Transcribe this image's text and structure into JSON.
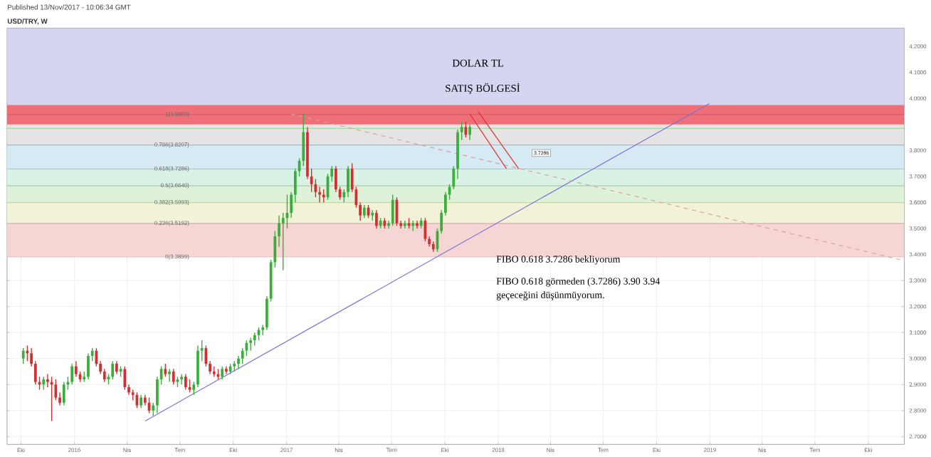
{
  "chart_data": {
    "type": "candlestick",
    "title": "USD/TRY, W",
    "subtitle": "Published 13/Nov/2017 - 10:06:34 GMT",
    "annotations": [
      "DOLAR TL",
      "SATIŞ BÖLGESİ",
      "FIBO 0.618  3.7286 bekliyorum",
      "FIBO 0.618 görmeden (3.7286) 3.90 3.94",
      "geçeceğini düşünmüyorum.",
      "3.7286"
    ],
    "x": [
      "2015-10-05",
      "2015-10-12",
      "2015-10-19",
      "2015-10-26",
      "2015-11-02",
      "2015-11-09",
      "2015-11-16",
      "2015-11-23",
      "2015-11-30",
      "2015-12-07",
      "2015-12-14",
      "2015-12-21",
      "2015-12-28",
      "2016-01-04",
      "2016-01-11",
      "2016-01-18",
      "2016-01-25",
      "2016-02-01",
      "2016-02-08",
      "2016-02-15",
      "2016-02-22",
      "2016-02-29",
      "2016-03-07",
      "2016-03-14",
      "2016-03-21",
      "2016-03-28",
      "2016-04-04",
      "2016-04-11",
      "2016-04-18",
      "2016-04-25",
      "2016-05-02",
      "2016-05-09",
      "2016-05-16",
      "2016-05-23",
      "2016-05-30",
      "2016-06-06",
      "2016-06-13",
      "2016-06-20",
      "2016-06-27",
      "2016-07-04",
      "2016-07-11",
      "2016-07-18",
      "2016-07-25",
      "2016-08-01",
      "2016-08-08",
      "2016-08-15",
      "2016-08-22",
      "2016-08-29",
      "2016-09-05",
      "2016-09-12",
      "2016-09-19",
      "2016-09-26",
      "2016-10-03",
      "2016-10-10",
      "2016-10-17",
      "2016-10-24",
      "2016-10-31",
      "2016-11-07",
      "2016-11-14",
      "2016-11-21",
      "2016-11-28",
      "2016-12-05",
      "2016-12-12",
      "2016-12-19",
      "2016-12-26",
      "2017-01-02",
      "2017-01-09",
      "2017-01-16",
      "2017-01-23",
      "2017-01-30",
      "2017-02-06",
      "2017-02-13",
      "2017-02-20",
      "2017-02-27",
      "2017-03-06",
      "2017-03-13",
      "2017-03-20",
      "2017-03-27",
      "2017-04-03",
      "2017-04-10",
      "2017-04-17",
      "2017-04-24",
      "2017-05-01",
      "2017-05-08",
      "2017-05-15",
      "2017-05-22",
      "2017-05-29",
      "2017-06-05",
      "2017-06-12",
      "2017-06-19",
      "2017-06-26",
      "2017-07-03",
      "2017-07-10",
      "2017-07-17",
      "2017-07-24",
      "2017-07-31",
      "2017-08-07",
      "2017-08-14",
      "2017-08-21",
      "2017-08-28",
      "2017-09-04",
      "2017-09-11",
      "2017-09-18",
      "2017-09-25",
      "2017-10-02",
      "2017-10-09",
      "2017-10-16",
      "2017-10-23",
      "2017-10-30",
      "2017-11-06",
      "2017-11-13"
    ],
    "ohlc": [
      [
        3.0,
        3.04,
        2.98,
        3.03
      ],
      [
        3.03,
        3.05,
        2.99,
        3.02
      ],
      [
        3.02,
        3.04,
        2.97,
        2.98
      ],
      [
        2.98,
        2.99,
        2.9,
        2.91
      ],
      [
        2.91,
        2.93,
        2.88,
        2.9
      ],
      [
        2.9,
        2.93,
        2.88,
        2.92
      ],
      [
        2.92,
        2.94,
        2.89,
        2.91
      ],
      [
        2.91,
        2.93,
        2.76,
        2.9
      ],
      [
        2.9,
        2.92,
        2.84,
        2.85
      ],
      [
        2.85,
        2.87,
        2.82,
        2.83
      ],
      [
        2.83,
        2.91,
        2.82,
        2.9
      ],
      [
        2.9,
        2.93,
        2.88,
        2.91
      ],
      [
        2.91,
        2.98,
        2.9,
        2.97
      ],
      [
        2.97,
        2.99,
        2.93,
        2.94
      ],
      [
        2.94,
        2.95,
        2.91,
        2.92
      ],
      [
        2.92,
        2.95,
        2.91,
        2.93
      ],
      [
        2.93,
        3.02,
        2.92,
        3.01
      ],
      [
        3.01,
        3.04,
        2.99,
        3.03
      ],
      [
        3.03,
        3.04,
        2.97,
        2.98
      ],
      [
        2.98,
        2.99,
        2.94,
        2.95
      ],
      [
        2.95,
        2.96,
        2.91,
        2.92
      ],
      [
        2.92,
        2.94,
        2.9,
        2.93
      ],
      [
        2.93,
        2.99,
        2.92,
        2.98
      ],
      [
        2.98,
        2.99,
        2.94,
        2.95
      ],
      [
        2.95,
        2.97,
        2.93,
        2.96
      ],
      [
        2.96,
        2.97,
        2.88,
        2.89
      ],
      [
        2.89,
        2.9,
        2.86,
        2.87
      ],
      [
        2.87,
        2.88,
        2.84,
        2.86
      ],
      [
        2.86,
        2.87,
        2.81,
        2.82
      ],
      [
        2.82,
        2.86,
        2.81,
        2.85
      ],
      [
        2.85,
        2.86,
        2.82,
        2.83
      ],
      [
        2.83,
        2.85,
        2.79,
        2.8
      ],
      [
        2.8,
        2.83,
        2.78,
        2.82
      ],
      [
        2.82,
        2.93,
        2.79,
        2.92
      ],
      [
        2.92,
        2.97,
        2.9,
        2.96
      ],
      [
        2.96,
        2.98,
        2.93,
        2.94
      ],
      [
        2.94,
        2.96,
        2.91,
        2.95
      ],
      [
        2.95,
        2.96,
        2.9,
        2.91
      ],
      [
        2.91,
        2.93,
        2.89,
        2.92
      ],
      [
        2.92,
        2.94,
        2.9,
        2.93
      ],
      [
        2.93,
        2.94,
        2.88,
        2.89
      ],
      [
        2.89,
        2.92,
        2.87,
        2.88
      ],
      [
        2.88,
        2.91,
        2.86,
        2.9
      ],
      [
        2.9,
        3.05,
        2.89,
        3.03
      ],
      [
        3.03,
        3.07,
        2.99,
        3.04
      ],
      [
        3.04,
        3.05,
        2.97,
        2.98
      ],
      [
        2.98,
        2.99,
        2.94,
        2.95
      ],
      [
        2.95,
        2.97,
        2.93,
        2.94
      ],
      [
        2.94,
        2.96,
        2.92,
        2.93
      ],
      [
        2.93,
        2.97,
        2.92,
        2.96
      ],
      [
        2.96,
        2.97,
        2.94,
        2.95
      ],
      [
        2.95,
        2.98,
        2.94,
        2.97
      ],
      [
        2.97,
        2.99,
        2.95,
        2.98
      ],
      [
        2.98,
        3.01,
        2.96,
        3.0
      ],
      [
        3.0,
        3.04,
        2.98,
        3.03
      ],
      [
        3.03,
        3.07,
        3.01,
        3.06
      ],
      [
        3.06,
        3.08,
        3.03,
        3.07
      ],
      [
        3.07,
        3.1,
        3.05,
        3.09
      ],
      [
        3.09,
        3.12,
        3.07,
        3.11
      ],
      [
        3.11,
        3.13,
        3.09,
        3.12
      ],
      [
        3.12,
        3.24,
        3.11,
        3.23
      ],
      [
        3.23,
        3.38,
        3.22,
        3.37
      ],
      [
        3.37,
        3.49,
        3.35,
        3.47
      ],
      [
        3.47,
        3.55,
        3.43,
        3.52
      ],
      [
        3.52,
        3.56,
        3.34,
        3.54
      ],
      [
        3.54,
        3.63,
        3.5,
        3.56
      ],
      [
        3.56,
        3.64,
        3.54,
        3.63
      ],
      [
        3.63,
        3.73,
        3.6,
        3.72
      ],
      [
        3.72,
        3.77,
        3.7,
        3.76
      ],
      [
        3.76,
        3.94,
        3.74,
        3.87
      ],
      [
        3.87,
        3.89,
        3.69,
        3.7
      ],
      [
        3.7,
        3.73,
        3.64,
        3.67
      ],
      [
        3.67,
        3.69,
        3.62,
        3.64
      ],
      [
        3.64,
        3.66,
        3.6,
        3.63
      ],
      [
        3.63,
        3.65,
        3.6,
        3.62
      ],
      [
        3.62,
        3.71,
        3.61,
        3.7
      ],
      [
        3.7,
        3.74,
        3.68,
        3.73
      ],
      [
        3.73,
        3.74,
        3.64,
        3.65
      ],
      [
        3.65,
        3.66,
        3.61,
        3.62
      ],
      [
        3.62,
        3.65,
        3.6,
        3.64
      ],
      [
        3.64,
        3.74,
        3.62,
        3.73
      ],
      [
        3.73,
        3.75,
        3.64,
        3.65
      ],
      [
        3.65,
        3.66,
        3.58,
        3.59
      ],
      [
        3.59,
        3.6,
        3.53,
        3.55
      ],
      [
        3.55,
        3.59,
        3.54,
        3.58
      ],
      [
        3.58,
        3.59,
        3.54,
        3.55
      ],
      [
        3.55,
        3.57,
        3.53,
        3.56
      ],
      [
        3.56,
        3.57,
        3.5,
        3.51
      ],
      [
        3.51,
        3.54,
        3.5,
        3.53
      ],
      [
        3.53,
        3.54,
        3.5,
        3.51
      ],
      [
        3.51,
        3.53,
        3.5,
        3.52
      ],
      [
        3.52,
        3.63,
        3.51,
        3.61
      ],
      [
        3.61,
        3.62,
        3.51,
        3.52
      ],
      [
        3.52,
        3.53,
        3.5,
        3.51
      ],
      [
        3.51,
        3.53,
        3.5,
        3.52
      ],
      [
        3.52,
        3.54,
        3.5,
        3.51
      ],
      [
        3.51,
        3.53,
        3.49,
        3.52
      ],
      [
        3.52,
        3.53,
        3.5,
        3.51
      ],
      [
        3.51,
        3.54,
        3.5,
        3.53
      ],
      [
        3.53,
        3.54,
        3.45,
        3.46
      ],
      [
        3.46,
        3.47,
        3.43,
        3.44
      ],
      [
        3.44,
        3.45,
        3.41,
        3.42
      ],
      [
        3.42,
        3.5,
        3.41,
        3.49
      ],
      [
        3.49,
        3.57,
        3.48,
        3.56
      ],
      [
        3.56,
        3.64,
        3.55,
        3.63
      ],
      [
        3.63,
        3.67,
        3.61,
        3.66
      ],
      [
        3.66,
        3.74,
        3.65,
        3.73
      ],
      [
        3.73,
        3.88,
        3.69,
        3.87
      ],
      [
        3.87,
        3.91,
        3.84,
        3.89
      ],
      [
        3.89,
        3.91,
        3.85,
        3.86
      ],
      [
        3.86,
        3.9,
        3.84,
        3.89
      ]
    ],
    "series": [
      {
        "type": "line",
        "x": [
          "2016-05-02",
          "2018-12-31"
        ],
        "values": [
          2.76,
          3.98
        ],
        "color": "#7b6fd6"
      },
      {
        "type": "line",
        "x": [
          "2017-01-09",
          "2019-11-25"
        ],
        "values": [
          3.94,
          3.38
        ],
        "color": "#d9a0a0",
        "line_style": "dashed"
      },
      {
        "type": "line",
        "x": [
          "2017-11-13",
          "2018-01-15"
        ],
        "values": [
          3.94,
          3.73
        ],
        "color": "#e03030"
      },
      {
        "type": "line",
        "x": [
          "2017-11-27",
          "2018-02-05"
        ],
        "values": [
          3.95,
          3.73
        ],
        "color": "#e03030"
      }
    ],
    "bands": [
      {
        "axis": "y",
        "from": 3.3899,
        "to": 3.5192,
        "color": "#f6d5d5"
      },
      {
        "axis": "y",
        "from": 3.5192,
        "to": 3.5993,
        "color": "#f1f2d8"
      },
      {
        "axis": "y",
        "from": 3.5993,
        "to": 3.664,
        "color": "#ddf2d8"
      },
      {
        "axis": "y",
        "from": 3.664,
        "to": 3.7286,
        "color": "#d8f2e6"
      },
      {
        "axis": "y",
        "from": 3.7286,
        "to": 3.8207,
        "color": "#d6eaf4"
      },
      {
        "axis": "y",
        "from": 3.8207,
        "to": 3.938,
        "color": "#e4e4e4"
      },
      {
        "axis": "y",
        "from": 3.9,
        "to": 3.975,
        "color": "#ef6f78"
      },
      {
        "axis": "y",
        "from": 3.975,
        "to": 4.27,
        "color": "#d5d5f2"
      }
    ],
    "ref_lines": [
      {
        "axis": "y",
        "value": 3.3899,
        "label": "0(3.3899)",
        "color": "#c9a0a0"
      },
      {
        "axis": "y",
        "value": 3.5192,
        "label": "0.236(3.5192)",
        "color": "#c08080"
      },
      {
        "axis": "y",
        "value": 3.5993,
        "label": "0.382(3.5993)",
        "color": "#b0c080"
      },
      {
        "axis": "y",
        "value": 3.664,
        "label": "0.5(3.6640)",
        "color": "#80b080"
      },
      {
        "axis": "y",
        "value": 3.7286,
        "label": "0.618(3.7286)",
        "color": "#80b0b0"
      },
      {
        "axis": "y",
        "value": 3.8207,
        "label": "0.786(3.8207)",
        "color": "#8090a8"
      },
      {
        "axis": "y",
        "value": 3.938,
        "label": "1(3.9380)",
        "color": "#c05060"
      },
      {
        "axis": "y",
        "value": 3.885,
        "color": "#5cc65c"
      }
    ],
    "xlim": [
      "2015-09-07",
      "2019-12-02"
    ],
    "ylim": [
      2.67,
      4.27
    ],
    "xticks": [
      {
        "value": "2015-10-01",
        "label": "Eki"
      },
      {
        "value": "2016-01-01",
        "label": "2016"
      },
      {
        "value": "2016-04-01",
        "label": "Nis"
      },
      {
        "value": "2016-07-01",
        "label": "Tem"
      },
      {
        "value": "2016-10-01",
        "label": "Eki"
      },
      {
        "value": "2017-01-01",
        "label": "2017"
      },
      {
        "value": "2017-04-01",
        "label": "Nis"
      },
      {
        "value": "2017-07-01",
        "label": "Tem"
      },
      {
        "value": "2017-10-01",
        "label": "Eki"
      },
      {
        "value": "2018-01-01",
        "label": "2018"
      },
      {
        "value": "2018-04-01",
        "label": "Nis"
      },
      {
        "value": "2018-07-01",
        "label": "Tem"
      },
      {
        "value": "2018-10-01",
        "label": "Eki"
      },
      {
        "value": "2019-01-01",
        "label": "2019"
      },
      {
        "value": "2019-04-01",
        "label": "Nis"
      },
      {
        "value": "2019-07-01",
        "label": "Tem"
      },
      {
        "value": "2019-10-01",
        "label": "Eki"
      }
    ],
    "yticks": [
      {
        "value": 2.7,
        "label": "2.7000"
      },
      {
        "value": 2.8,
        "label": "2.8000"
      },
      {
        "value": 2.9,
        "label": "2.9000"
      },
      {
        "value": 3.0,
        "label": "3.0000"
      },
      {
        "value": 3.1,
        "label": "3.1000"
      },
      {
        "value": 3.2,
        "label": "3.2000"
      },
      {
        "value": 3.3,
        "label": "3.3000"
      },
      {
        "value": 3.4,
        "label": "3.4000"
      },
      {
        "value": 3.5,
        "label": "3.5000"
      },
      {
        "value": 3.6,
        "label": "3.6000"
      },
      {
        "value": 3.7,
        "label": "3.7000"
      },
      {
        "value": 3.8,
        "label": "3.8000"
      },
      {
        "value": 3.9,
        "label": null
      },
      {
        "value": 4.0,
        "label": "4.0000"
      },
      {
        "value": 4.1,
        "label": "4.1000"
      },
      {
        "value": 4.2,
        "label": "4.2000"
      }
    ],
    "grid": true
  }
}
